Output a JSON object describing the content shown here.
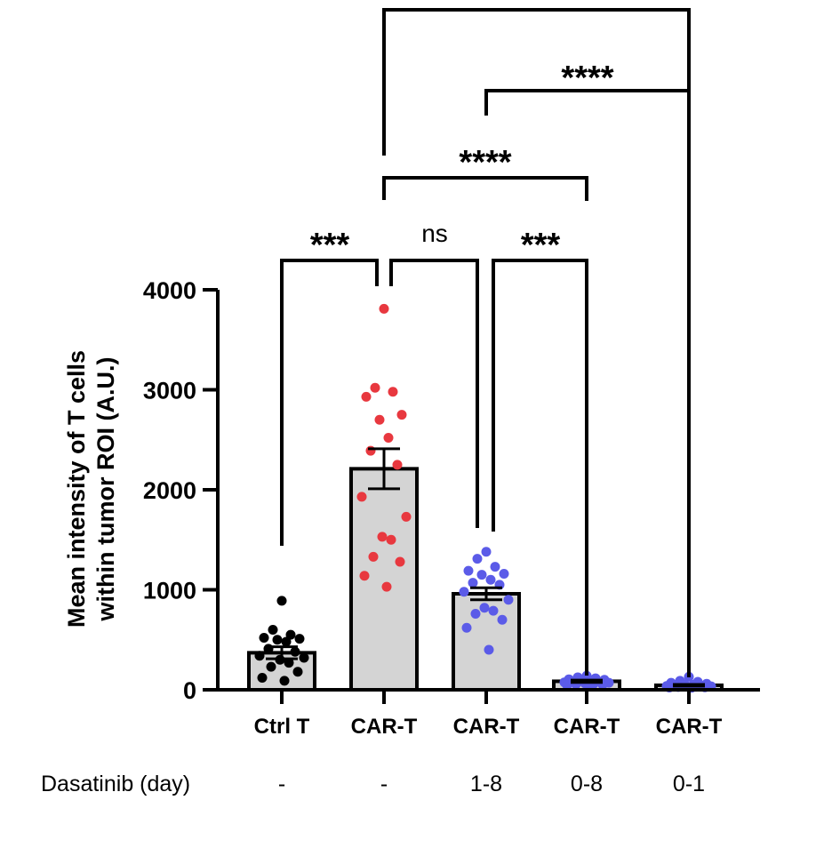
{
  "chart_data": {
    "type": "bar",
    "ylabel": [
      "Mean intensity of T cells",
      "within tumor  ROI (A.U.)"
    ],
    "ylim": [
      0,
      4000
    ],
    "yticks": [
      {
        "value": 0,
        "label": "0"
      },
      {
        "value": 1000,
        "label": "1000"
      },
      {
        "value": 2000,
        "label": "2000"
      },
      {
        "value": 3000,
        "label": "3000"
      },
      {
        "value": 4000,
        "label": "4000"
      }
    ],
    "categories": [
      "Ctrl T",
      "CAR-T",
      "CAR-T",
      "CAR-T",
      "CAR-T"
    ],
    "treatment_label": "Dasatinib (day)",
    "treatment_values": [
      "-",
      "-",
      "1-8",
      "0-8",
      "0-1"
    ],
    "colors": {
      "bar_fill": "#d4d4d4",
      "ctrl": "#000000",
      "car": "#e8383f",
      "dasatinib": "#5b5be8"
    },
    "bars": [
      {
        "mean": 370,
        "sem": 60,
        "point_color": "#000000",
        "points": [
          890,
          600,
          550,
          520,
          510,
          500,
          480,
          410,
          380,
          340,
          320,
          300,
          270,
          230,
          180,
          120,
          90
        ]
      },
      {
        "mean": 2210,
        "sem": 200,
        "point_color": "#e8383f",
        "points": [
          3810,
          3020,
          2980,
          2930,
          2750,
          2700,
          2520,
          2390,
          2250,
          1930,
          1730,
          1530,
          1500,
          1330,
          1280,
          1140,
          1030
        ]
      },
      {
        "mean": 960,
        "sem": 60,
        "point_color": "#5b5be8",
        "points": [
          1380,
          1310,
          1230,
          1190,
          1160,
          1150,
          1100,
          1070,
          1050,
          980,
          900,
          820,
          790,
          760,
          700,
          620,
          400
        ]
      },
      {
        "mean": 85,
        "sem": 12,
        "point_color": "#5b5be8",
        "points": [
          140,
          125,
          115,
          105,
          100,
          95,
          90,
          85,
          80,
          75,
          70,
          65,
          60,
          55,
          50,
          45,
          40
        ]
      },
      {
        "mean": 45,
        "sem": 8,
        "point_color": "#5b5be8",
        "points": [
          130,
          90,
          80,
          70,
          60,
          55,
          50,
          45,
          40,
          38,
          35,
          32,
          30,
          28,
          25,
          22,
          20
        ]
      }
    ],
    "comparisons": [
      {
        "from": 0,
        "to": 1,
        "label": "***"
      },
      {
        "from": 1,
        "to": 2,
        "label": "ns"
      },
      {
        "from": 2,
        "to": 3,
        "label": "***"
      },
      {
        "from": 1,
        "to": 3,
        "label": "****"
      },
      {
        "from": 2,
        "to": 4,
        "label": "****"
      },
      {
        "from": 1,
        "to": 4,
        "label": ""
      }
    ]
  }
}
